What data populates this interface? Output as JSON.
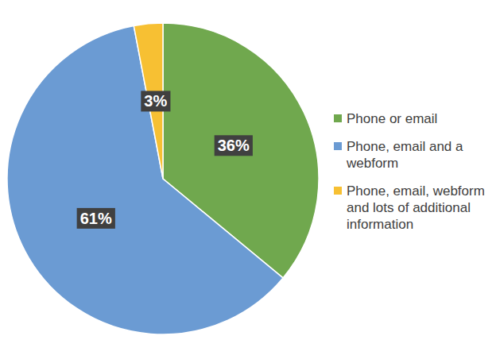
{
  "chart_data": {
    "type": "pie",
    "categories": [
      "Phone or email",
      "Phone, email and a webform",
      "Phone, email, webform and lots of additional information"
    ],
    "values": [
      36,
      61,
      3
    ],
    "value_labels": [
      "36%",
      "61%",
      "3%"
    ],
    "colors": [
      "#70a84e",
      "#6b9bd3",
      "#f7c033"
    ],
    "data_labels": true,
    "legend": "right"
  }
}
